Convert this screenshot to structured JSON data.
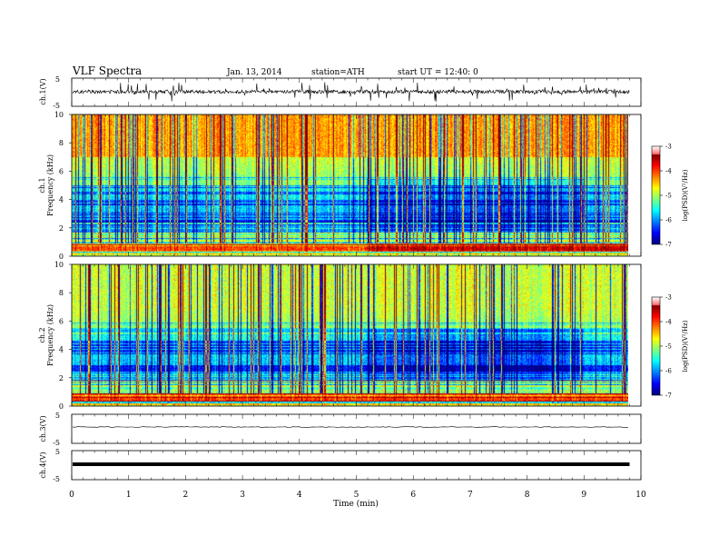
{
  "header": {
    "title": "VLF  Spectra",
    "date": "Jan. 13, 2014",
    "station": "station=ATH",
    "start": "start  UT  =    12:40: 0"
  },
  "chart_data": [
    {
      "type": "line",
      "panel": "ch1-waveform",
      "ylabel": "ch.1(V)",
      "y_ticks": [
        "5",
        "-5"
      ],
      "ylim": [
        -5,
        5
      ],
      "xlim": [
        0,
        10
      ],
      "description_series": "noisy voltage trace, baseline near 0 V with spikes",
      "baseline": 0.2
    },
    {
      "type": "heatmap",
      "panel": "ch1-spectrogram",
      "ylabel": "Frequency  (kHz)",
      "channel_label": "ch.1",
      "y_ticks": [
        "0",
        "2",
        "4",
        "6",
        "8",
        "10"
      ],
      "ylim": [
        0,
        10
      ],
      "xlim": [
        0,
        9.8
      ],
      "colorbar": {
        "label": "log(PSD)(V²/Hz)",
        "ticks": [
          "-3",
          "-4",
          "-5",
          "-6",
          "-7"
        ],
        "range": [
          -7,
          -3
        ]
      }
    },
    {
      "type": "heatmap",
      "panel": "ch2-spectrogram",
      "ylabel": "Frequency  (kHz)",
      "channel_label": "ch.2",
      "y_ticks": [
        "0",
        "2",
        "4",
        "6",
        "8",
        "10"
      ],
      "ylim": [
        0,
        10
      ],
      "xlim": [
        0,
        9.8
      ],
      "colorbar": {
        "label": "log(PSD)(V²/Hz)",
        "ticks": [
          "-3",
          "-4",
          "-5",
          "-6",
          "-7"
        ],
        "range": [
          -7,
          -3
        ]
      }
    },
    {
      "type": "line",
      "panel": "ch3-waveform",
      "ylabel": "ch.3(V)",
      "y_ticks": [
        "5",
        "-5"
      ],
      "ylim": [
        -5,
        5
      ],
      "xlim": [
        0,
        10
      ],
      "baseline": 0.6
    },
    {
      "type": "line",
      "panel": "ch4-waveform",
      "ylabel": "ch.4(V)",
      "y_ticks": [
        "5",
        "-5"
      ],
      "ylim": [
        -5,
        5
      ],
      "xlim": [
        0,
        10
      ],
      "baseline": 0.0
    }
  ],
  "xaxis": {
    "label": "Time  (min)",
    "ticks": [
      "0",
      "1",
      "2",
      "3",
      "4",
      "5",
      "6",
      "7",
      "8",
      "9",
      "10"
    ]
  },
  "colors": {
    "jet_low": "#00007f",
    "jet_mid": "#00ff7f",
    "jet_high": "#ff0000"
  }
}
